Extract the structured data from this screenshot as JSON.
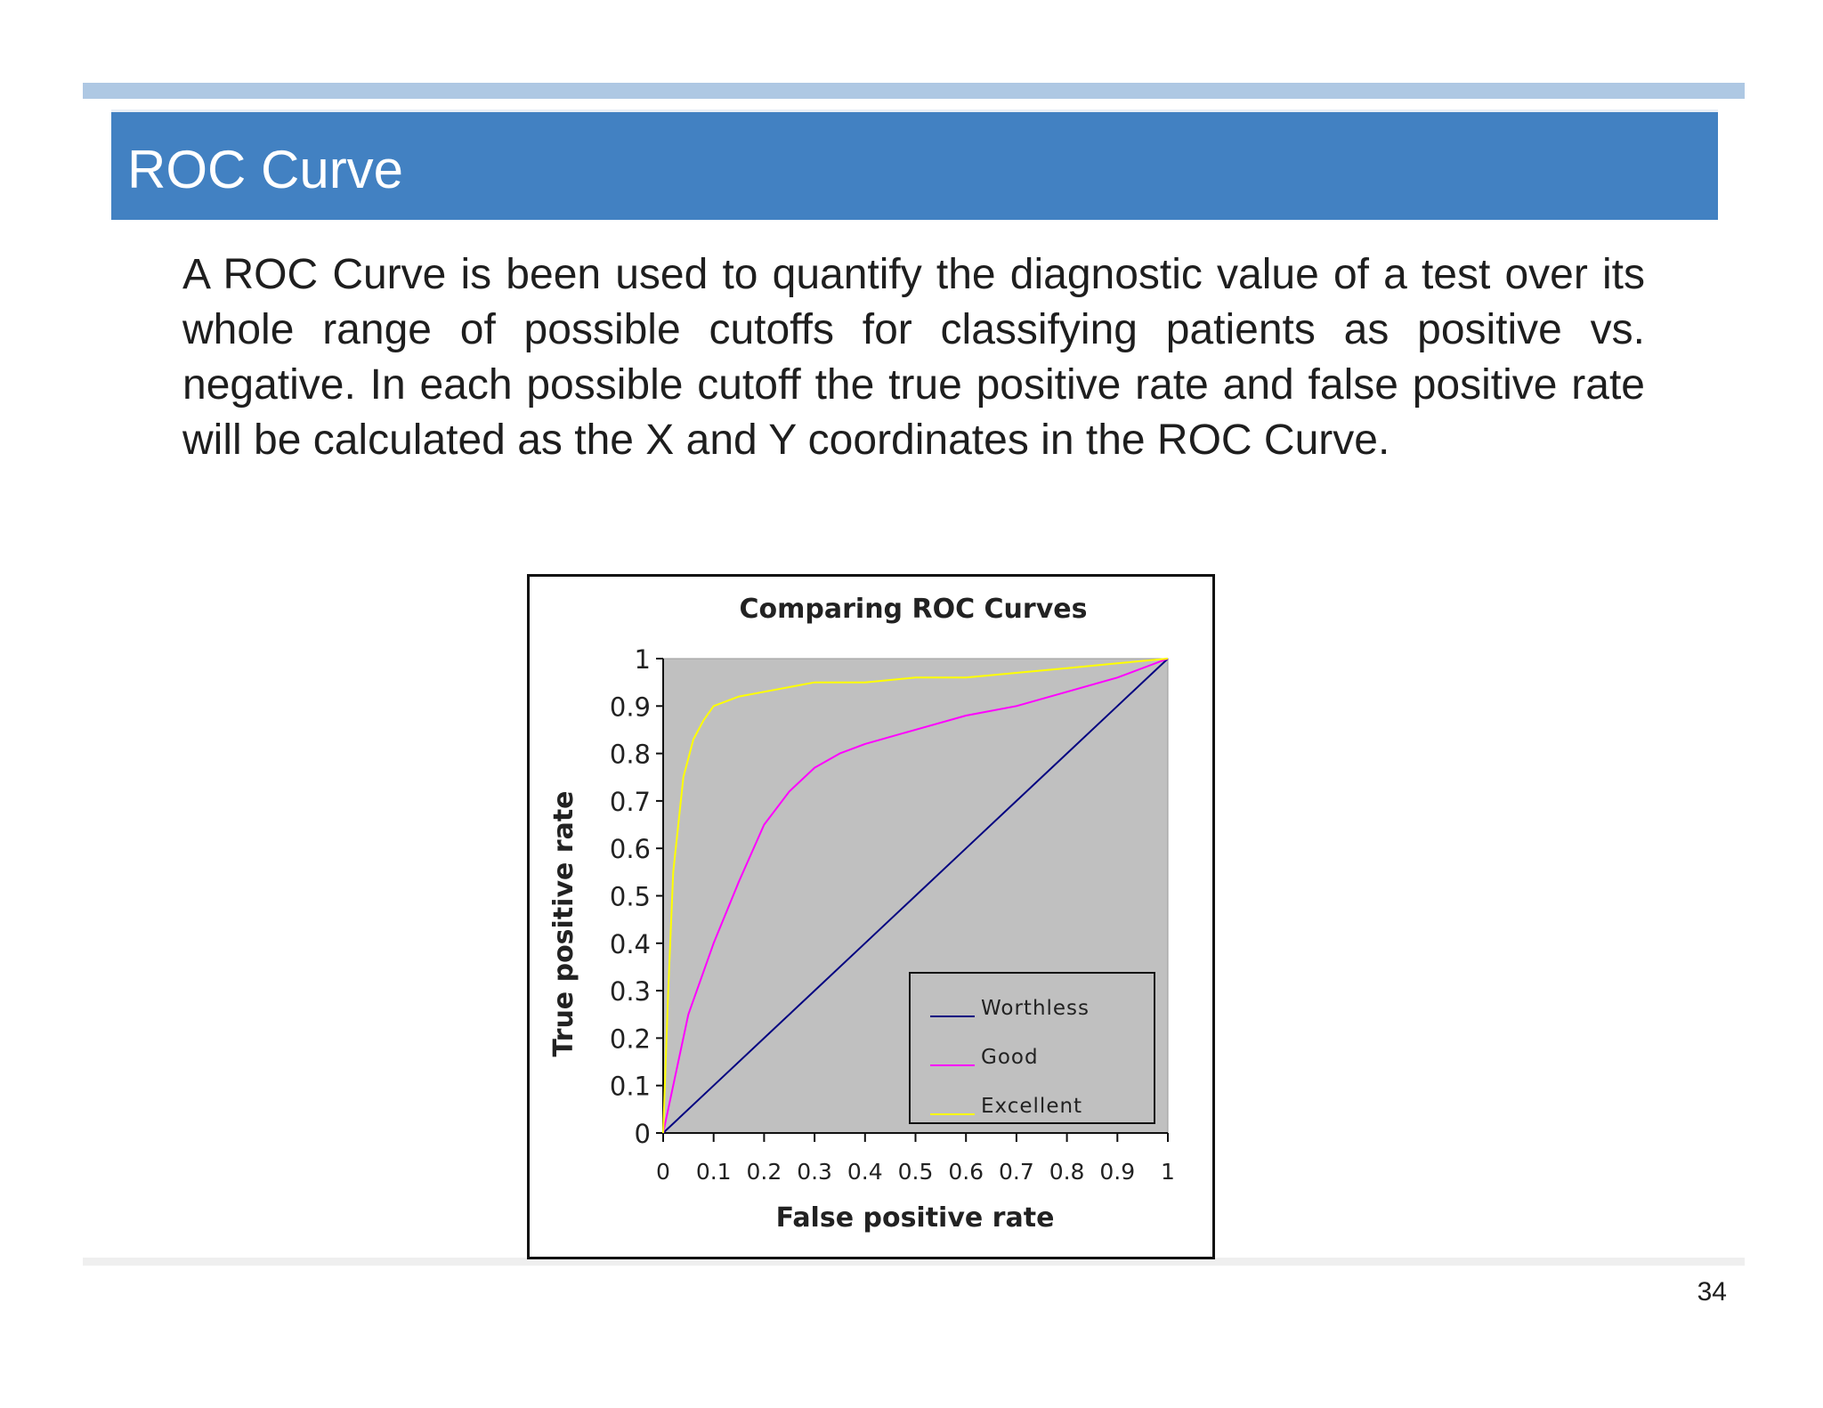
{
  "slide": {
    "title": "ROC Curve",
    "body": " A ROC Curve is been used to quantify the diagnostic value of a test over its whole range of possible cutoffs for classifying patients as positive vs. negative. In each possible cutoff the true positive rate and false positive rate will be calculated as the X and Y coordinates in the ROC Curve.",
    "page_number": "34"
  },
  "colors": {
    "title_bar": "#4281c2",
    "top_rule": "#aec8e3",
    "plot_background": "#c0c0c0"
  },
  "chart_data": {
    "type": "line",
    "title": "Comparing ROC Curves",
    "xlabel": "False positive rate",
    "ylabel": "True positive rate",
    "xlim": [
      0,
      1
    ],
    "ylim": [
      0,
      1
    ],
    "x_ticks": [
      "0",
      "0.1",
      "0.2",
      "0.3",
      "0.4",
      "0.5",
      "0.6",
      "0.7",
      "0.8",
      "0.9",
      "1"
    ],
    "y_ticks": [
      "0",
      "0.1",
      "0.2",
      "0.3",
      "0.4",
      "0.5",
      "0.6",
      "0.7",
      "0.8",
      "0.9",
      "1"
    ],
    "grid": false,
    "legend_position": "bottom-right",
    "series": [
      {
        "name": "Worthless",
        "color": "#000080",
        "x": [
          0,
          0.1,
          0.2,
          0.3,
          0.4,
          0.5,
          0.6,
          0.7,
          0.8,
          0.9,
          1
        ],
        "y": [
          0,
          0.1,
          0.2,
          0.3,
          0.4,
          0.5,
          0.6,
          0.7,
          0.8,
          0.9,
          1
        ]
      },
      {
        "name": "Good",
        "color": "#ff00ff",
        "x": [
          0,
          0.02,
          0.05,
          0.1,
          0.15,
          0.2,
          0.25,
          0.3,
          0.35,
          0.4,
          0.5,
          0.6,
          0.7,
          0.8,
          0.9,
          1
        ],
        "y": [
          0,
          0.1,
          0.25,
          0.4,
          0.53,
          0.65,
          0.72,
          0.77,
          0.8,
          0.82,
          0.85,
          0.88,
          0.9,
          0.93,
          0.96,
          1
        ]
      },
      {
        "name": "Excellent",
        "color": "#ffff00",
        "x": [
          0,
          0.01,
          0.02,
          0.04,
          0.06,
          0.08,
          0.1,
          0.15,
          0.2,
          0.3,
          0.4,
          0.5,
          0.6,
          0.7,
          0.8,
          0.9,
          1
        ],
        "y": [
          0,
          0.3,
          0.55,
          0.75,
          0.83,
          0.87,
          0.9,
          0.92,
          0.93,
          0.95,
          0.95,
          0.96,
          0.96,
          0.97,
          0.98,
          0.99,
          1
        ]
      }
    ]
  }
}
